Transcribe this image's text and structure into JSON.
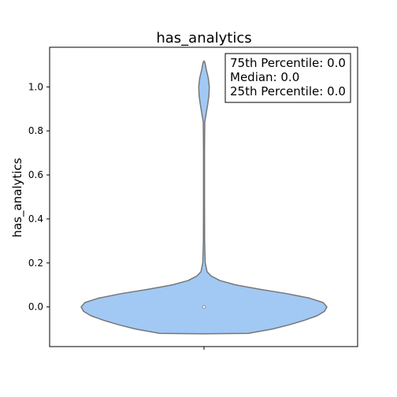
{
  "chart_data": {
    "type": "violin",
    "title": "has_analytics",
    "xlabel": "",
    "ylabel": "has_analytics",
    "ylim": [
      -0.18,
      1.18
    ],
    "yticks": [
      "0.0",
      "0.2",
      "0.4",
      "0.6",
      "0.8",
      "1.0"
    ],
    "ytick_values": [
      0.0,
      0.2,
      0.4,
      0.6,
      0.8,
      1.0
    ],
    "fill_color": "#a1c9f4",
    "edge_color": "#777777",
    "median": 0.0,
    "stats_box": [
      "75th Percentile: 0.0",
      "Median: 0.0",
      "25th Percentile: 0.0"
    ],
    "density_profile": [
      {
        "y": -0.122,
        "w": 0.0
      },
      {
        "y": -0.12,
        "w": 0.36
      },
      {
        "y": -0.1,
        "w": 0.56
      },
      {
        "y": -0.08,
        "w": 0.7
      },
      {
        "y": -0.06,
        "w": 0.82
      },
      {
        "y": -0.04,
        "w": 0.92
      },
      {
        "y": -0.02,
        "w": 0.98
      },
      {
        "y": 0.0,
        "w": 1.0
      },
      {
        "y": 0.02,
        "w": 0.97
      },
      {
        "y": 0.04,
        "w": 0.86
      },
      {
        "y": 0.06,
        "w": 0.68
      },
      {
        "y": 0.08,
        "w": 0.46
      },
      {
        "y": 0.1,
        "w": 0.26
      },
      {
        "y": 0.12,
        "w": 0.13
      },
      {
        "y": 0.14,
        "w": 0.06
      },
      {
        "y": 0.16,
        "w": 0.025
      },
      {
        "y": 0.2,
        "w": 0.01
      },
      {
        "y": 0.3,
        "w": 0.005
      },
      {
        "y": 0.5,
        "w": 0.004
      },
      {
        "y": 0.7,
        "w": 0.004
      },
      {
        "y": 0.84,
        "w": 0.006
      },
      {
        "y": 0.88,
        "w": 0.018
      },
      {
        "y": 0.92,
        "w": 0.03
      },
      {
        "y": 0.96,
        "w": 0.04
      },
      {
        "y": 1.0,
        "w": 0.043
      },
      {
        "y": 1.04,
        "w": 0.035
      },
      {
        "y": 1.08,
        "w": 0.018
      },
      {
        "y": 1.11,
        "w": 0.008
      },
      {
        "y": 1.118,
        "w": 0.0
      }
    ]
  }
}
